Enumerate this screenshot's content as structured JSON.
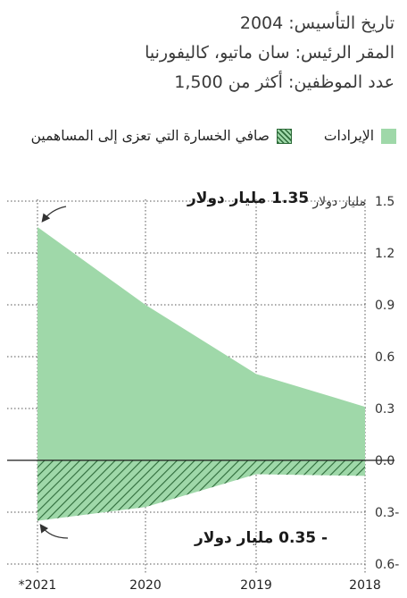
{
  "facts": [
    "تاريخ التأسيس: 2004",
    "المقر الرئيس: سان ماتيو، كاليفورنيا",
    "عدد الموظفين: أكثر من 1,500"
  ],
  "legend": {
    "revenue": "الإيرادات",
    "loss": "صافي الخسارة التي تعزى إلى المساهمين"
  },
  "colors": {
    "revenue": "#9fd8a9",
    "hatch": "#2e6b3a"
  },
  "annotations": {
    "top": "1.35 مليار دولار",
    "bottom": "- 0.35 مليار دولار"
  },
  "chart_data": {
    "type": "area",
    "categories": [
      "*2021",
      "2020",
      "2019",
      "2018"
    ],
    "series": [
      {
        "name": "الإيرادات",
        "values": [
          1.35,
          0.9,
          0.5,
          0.31
        ]
      },
      {
        "name": "صافي الخسارة التي تعزى إلى المساهمين",
        "values": [
          -0.35,
          -0.27,
          -0.08,
          -0.09
        ]
      }
    ],
    "ylim": [
      -0.6,
      1.5
    ],
    "yticks": [
      "1.5",
      "1.2",
      "0.9",
      "0.6",
      "0.3",
      "0.0",
      "0.3-",
      "0.6-"
    ],
    "yunit": "مليار دولار",
    "grid": true
  }
}
